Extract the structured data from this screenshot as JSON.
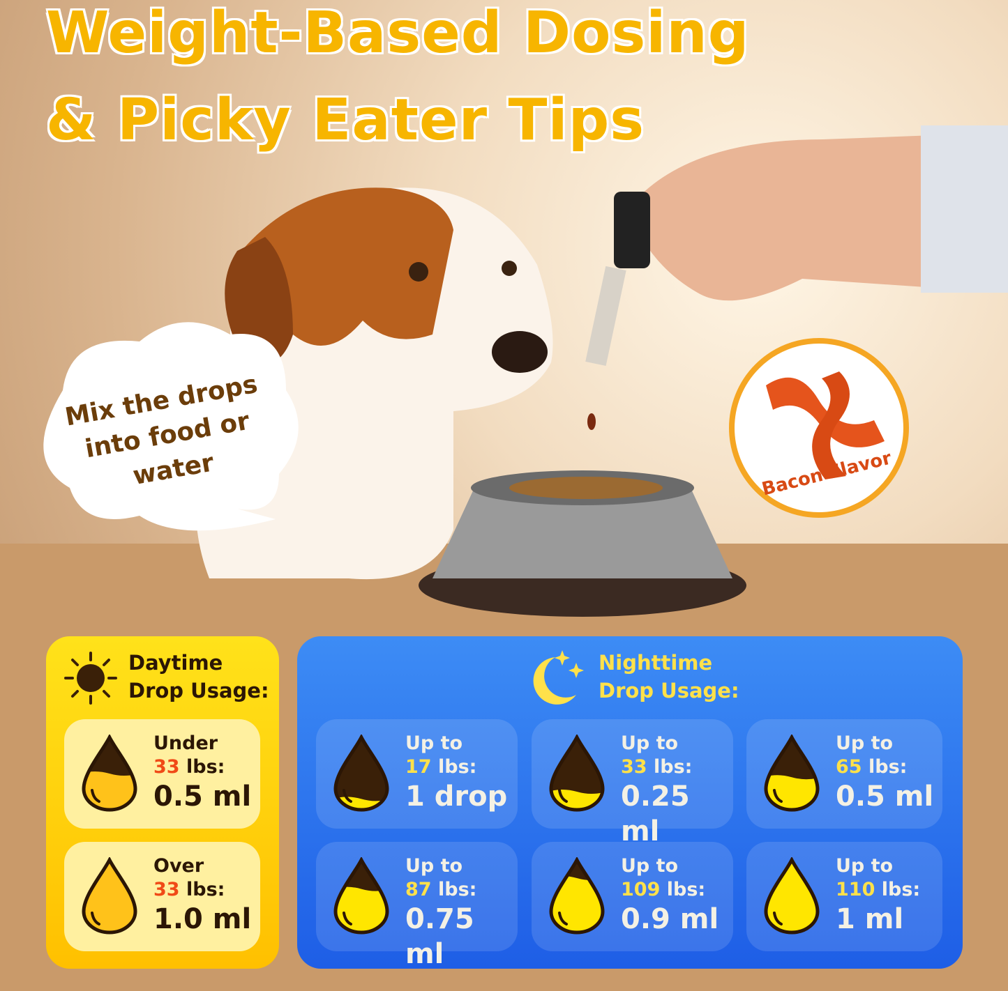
{
  "title": {
    "line1": "Weight-Based Dosing",
    "line2": "& Picky Eater Tips"
  },
  "bubble_text": "Mix the drops into food or water",
  "badge": {
    "text": "Bacon Flavor",
    "icon": "bacon-icon"
  },
  "colors": {
    "title": "#f7b500",
    "day_panel": "#ffd000",
    "night_panel": "#2f74ee",
    "accent_red": "#f04a17",
    "accent_yellow": "#ffe14a",
    "drop_dark": "#3a2008"
  },
  "daytime": {
    "icon": "sun-icon",
    "heading_1": "Daytime",
    "heading_2": "Drop Usage:",
    "items": [
      {
        "prefix": "Under",
        "weight": "33",
        "unit": "lbs:",
        "dose": "0.5 ml",
        "fill": 0.5
      },
      {
        "prefix": "Over",
        "weight": "33",
        "unit": "lbs:",
        "dose": "1.0 ml",
        "fill": 1.0
      }
    ]
  },
  "nighttime": {
    "icon": "moon-stars-icon",
    "heading_1": "Nighttime",
    "heading_2": "Drop Usage:",
    "items": [
      {
        "prefix": "Up to",
        "weight": "17",
        "unit": "lbs:",
        "dose": "1 drop",
        "fill": 0.15
      },
      {
        "prefix": "Up to",
        "weight": "33",
        "unit": "lbs:",
        "dose": "0.25 ml",
        "fill": 0.25
      },
      {
        "prefix": "Up to",
        "weight": "65",
        "unit": "lbs:",
        "dose": "0.5 ml",
        "fill": 0.45
      },
      {
        "prefix": "Up to",
        "weight": "87",
        "unit": "lbs:",
        "dose": "0.75 ml",
        "fill": 0.6
      },
      {
        "prefix": "Up to",
        "weight": "109",
        "unit": "lbs:",
        "dose": "0.9 ml",
        "fill": 0.75
      },
      {
        "prefix": "Up to",
        "weight": "110",
        "unit": "lbs:",
        "dose": "1 ml",
        "fill": 1.0
      }
    ]
  }
}
